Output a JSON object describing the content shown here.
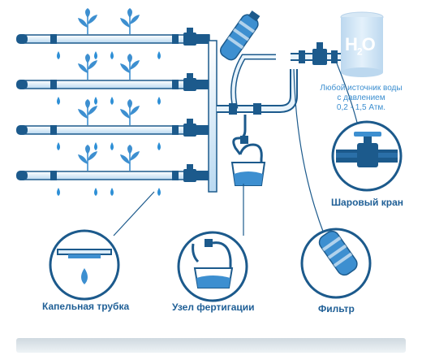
{
  "source": {
    "tank_formula": "H",
    "tank_formula_sub": "2",
    "tank_formula_end": "O",
    "note_lines": [
      "Любой источник воды",
      "с давлением",
      "0,2 - 1,5 Атм."
    ]
  },
  "callouts": {
    "drip_tube": "Капельная трубка",
    "fertigation": "Узел фертигации",
    "filter": "Фильтр",
    "ball_valve": "Шаровый кран"
  },
  "colors": {
    "pipe_dark": "#1c5a8c",
    "pipe_light": "#cfe6f7",
    "accent": "#2d8fd6",
    "label": "#1f5f96",
    "tank": "#cfe3f3"
  }
}
